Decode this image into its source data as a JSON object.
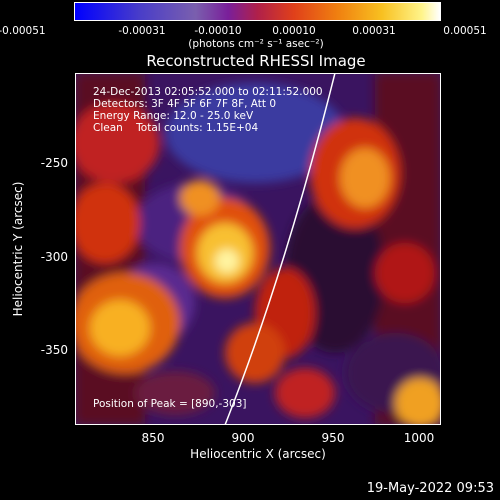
{
  "colorbar": {
    "ticks": [
      "-0.00051",
      "-0.00031",
      "-0.00010",
      "0.00010",
      "0.00031",
      "0.00051"
    ],
    "units": "(photons cm⁻² s⁻¹ asec⁻²)"
  },
  "title": "Reconstructed RHESSI Image",
  "info": {
    "line1": "24-Dec-2013 02:05:52.000 to 02:11:52.000",
    "line2": "Detectors: 3F 4F 5F 6F 7F 8F, Att 0",
    "line3": "Energy Range: 12.0 - 25.0 keV",
    "line4": "Clean    Total counts: 1.15E+04",
    "peak": "Position of Peak = [890,-303]"
  },
  "axes": {
    "xlabel": "Heliocentric X (arcsec)",
    "ylabel": "Heliocentric Y (arcsec)",
    "xticks": [
      "850",
      "900",
      "950",
      "1000"
    ],
    "yticks": [
      "-250",
      "-300",
      "-350"
    ]
  },
  "timestamp": "19-May-2022 09:53"
}
